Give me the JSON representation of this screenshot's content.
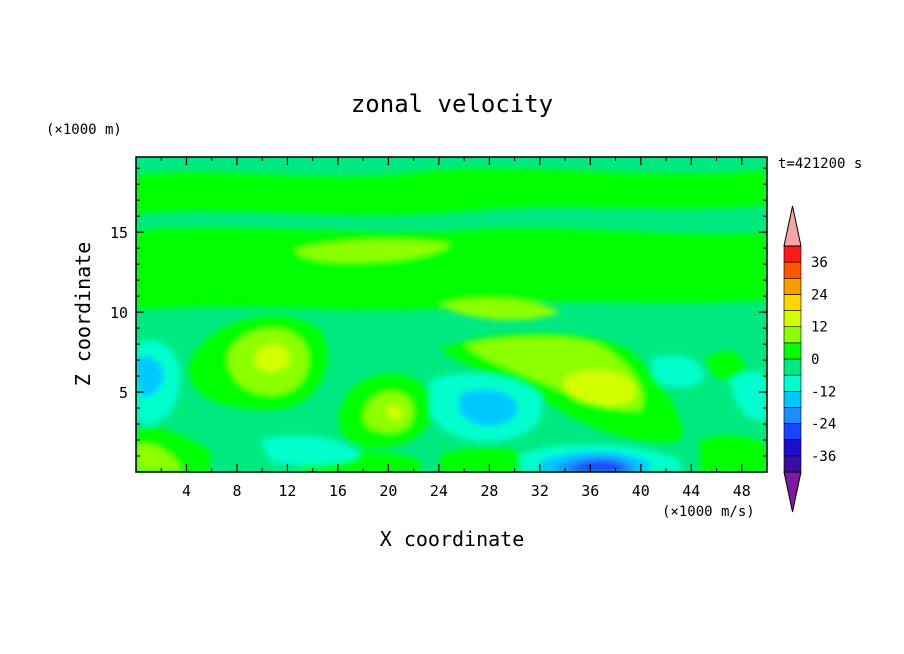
{
  "chart_data": {
    "type": "heatmap",
    "title": "zonal velocity",
    "xlabel": "X coordinate",
    "ylabel": "Z coordinate",
    "x_unit": "(×1000 m/s)",
    "y_unit": "(×1000 m)",
    "time_label": "t=421200 s",
    "xlim": [
      0,
      50
    ],
    "ylim": [
      0,
      19.7
    ],
    "x_ticks": [
      4,
      8,
      12,
      16,
      20,
      24,
      28,
      32,
      36,
      40,
      44,
      48
    ],
    "y_ticks": [
      5,
      10,
      15
    ],
    "x_tick_labels": [
      "4",
      "8",
      "12",
      "16",
      "20",
      "24",
      "28",
      "32",
      "36",
      "40",
      "44",
      "48"
    ],
    "y_tick_labels": [
      "5",
      "10",
      "15"
    ],
    "colorbar": {
      "levels": [
        -42,
        -36,
        -30,
        -24,
        -18,
        -12,
        -6,
        0,
        6,
        12,
        18,
        24,
        30,
        36,
        42
      ],
      "labels": [
        "36",
        "24",
        "12",
        "0",
        "-12",
        "-24",
        "-36"
      ],
      "label_values": [
        36,
        24,
        12,
        0,
        -12,
        -24,
        -36
      ],
      "colors": [
        "#7d1aa3",
        "#3a0fa0",
        "#1f0fcc",
        "#1d43ff",
        "#1e8cff",
        "#00c8ff",
        "#00ffcc",
        "#00e880",
        "#00ff00",
        "#8cff00",
        "#d2ff00",
        "#ffd600",
        "#ff9a00",
        "#ff5500",
        "#ff1a1a",
        "#f4a6a6"
      ],
      "extend": "both"
    },
    "features": [
      {
        "x": 10,
        "z": 6.5,
        "value": 8,
        "kind": "positive"
      },
      {
        "x": 20,
        "z": 3.8,
        "value": 9,
        "kind": "positive"
      },
      {
        "x": 37,
        "z": 5.5,
        "value": 10,
        "kind": "positive"
      },
      {
        "x": 36,
        "z": 0.3,
        "value": -25,
        "kind": "negative"
      },
      {
        "x": 28,
        "z": 4.3,
        "value": -9,
        "kind": "negative"
      },
      {
        "x": 1.5,
        "z": 6.5,
        "value": -8,
        "kind": "negative"
      },
      {
        "x": 41,
        "z": 6.5,
        "value": -6,
        "kind": "negative"
      },
      {
        "x": 49,
        "z": 5.5,
        "value": -7,
        "kind": "negative"
      },
      {
        "x": 20,
        "z": 13.8,
        "value": 4,
        "kind": "positive"
      },
      {
        "x": 35,
        "z": 10,
        "value": 4,
        "kind": "positive"
      }
    ]
  }
}
